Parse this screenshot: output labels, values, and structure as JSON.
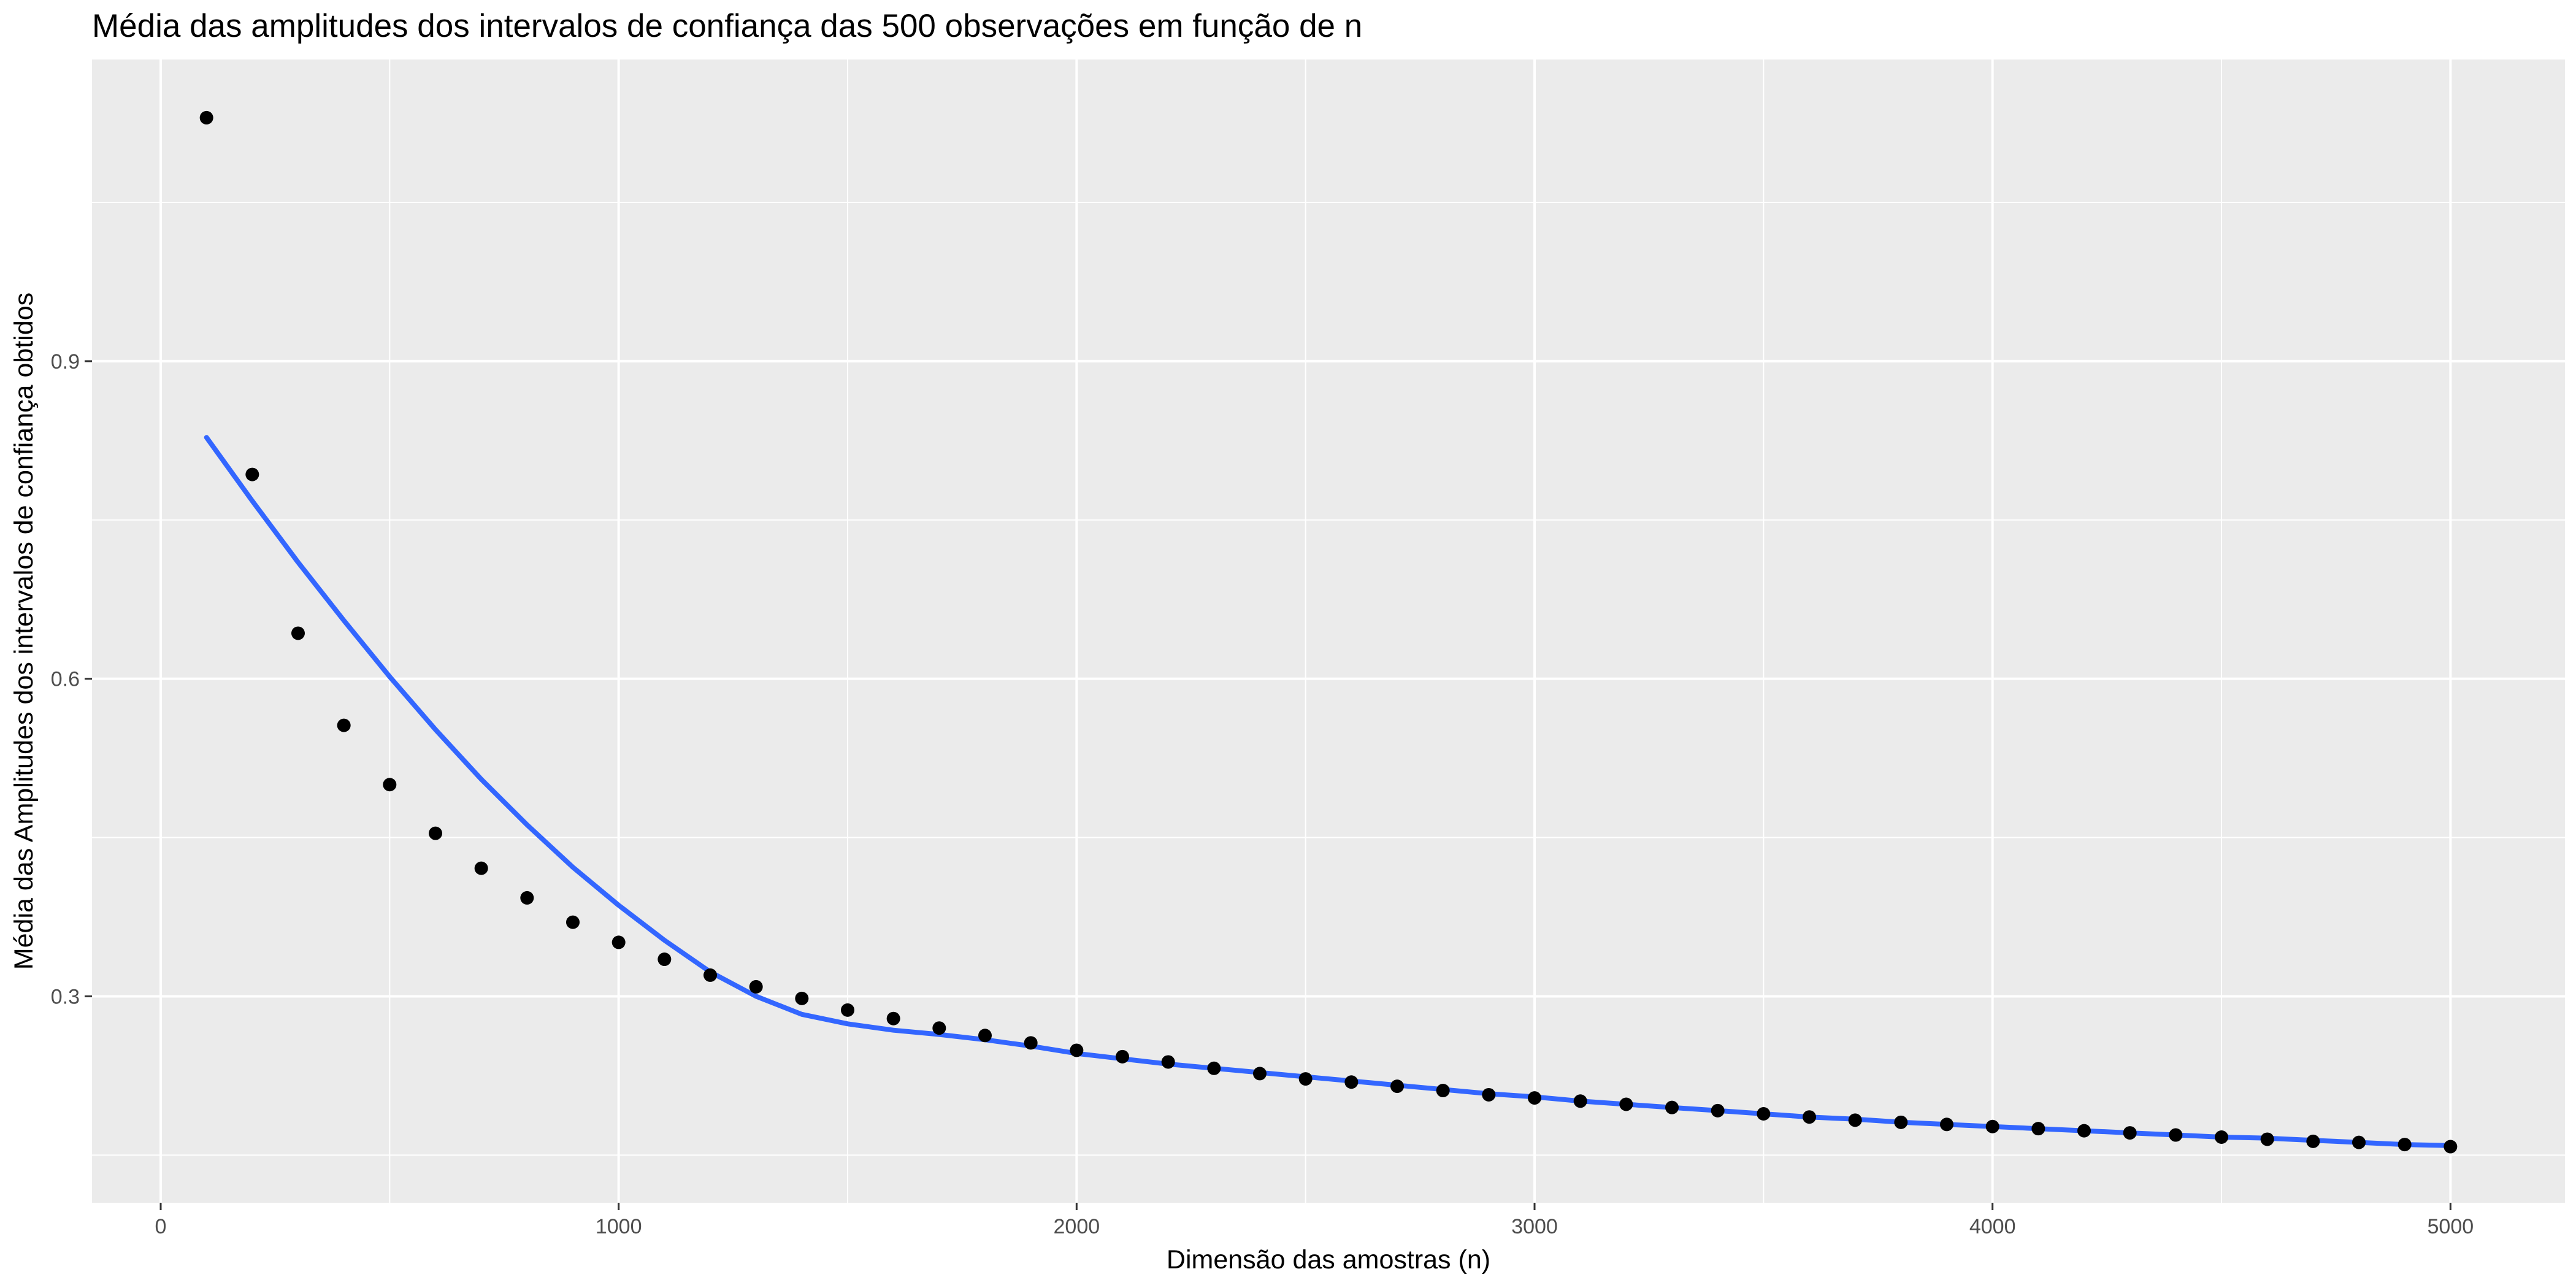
{
  "chart_data": {
    "type": "scatter",
    "title": "Média das amplitudes dos intervalos de confiança das 500 observações em função de n",
    "xlabel": "Dimensão das amostras (n)",
    "ylabel": "Média das Amplitudes dos intervalos de confiança obtidos",
    "xlim": [
      -150,
      5250
    ],
    "ylim": [
      0.105,
      1.185
    ],
    "x_ticks": [
      0,
      1000,
      2000,
      3000,
      4000,
      5000
    ],
    "x_tick_labels": [
      "0",
      "1000",
      "2000",
      "3000",
      "4000",
      "5000"
    ],
    "y_ticks": [
      0.3,
      0.6,
      0.9
    ],
    "y_tick_labels": [
      "0.3",
      "0.6",
      "0.9"
    ],
    "grid": true,
    "series": [
      {
        "kind": "points",
        "color": "#000000",
        "x": [
          100,
          200,
          300,
          400,
          500,
          600,
          700,
          800,
          900,
          1000,
          1100,
          1200,
          1300,
          1400,
          1500,
          1600,
          1700,
          1800,
          1900,
          2000,
          2100,
          2200,
          2300,
          2400,
          2500,
          2600,
          2700,
          2800,
          2900,
          3000,
          3100,
          3200,
          3300,
          3400,
          3500,
          3600,
          3700,
          3800,
          3900,
          4000,
          4100,
          4200,
          4300,
          4400,
          4500,
          4600,
          4700,
          4800,
          4900,
          5000
        ],
        "y": [
          1.13,
          0.793,
          0.643,
          0.556,
          0.5,
          0.454,
          0.421,
          0.393,
          0.37,
          0.351,
          0.335,
          0.32,
          0.309,
          0.298,
          0.287,
          0.279,
          0.27,
          0.263,
          0.256,
          0.249,
          0.243,
          0.238,
          0.232,
          0.227,
          0.222,
          0.219,
          0.215,
          0.211,
          0.207,
          0.204,
          0.201,
          0.198,
          0.195,
          0.192,
          0.189,
          0.186,
          0.183,
          0.181,
          0.179,
          0.177,
          0.175,
          0.173,
          0.171,
          0.169,
          0.167,
          0.165,
          0.163,
          0.162,
          0.16,
          0.158
        ]
      },
      {
        "kind": "smooth",
        "color": "#3366ff",
        "x": [
          100,
          200,
          300,
          400,
          500,
          600,
          700,
          800,
          900,
          1000,
          1100,
          1200,
          1300,
          1400,
          1500,
          1600,
          1700,
          1800,
          1900,
          2000,
          2100,
          2200,
          2300,
          2400,
          2500,
          2600,
          2700,
          2800,
          2900,
          3000,
          3100,
          3200,
          3300,
          3400,
          3500,
          3600,
          3700,
          3800,
          3900,
          4000,
          4100,
          4200,
          4300,
          4400,
          4500,
          4600,
          4700,
          4800,
          4900,
          5000
        ],
        "y": [
          0.828,
          0.768,
          0.71,
          0.655,
          0.602,
          0.552,
          0.505,
          0.462,
          0.422,
          0.386,
          0.353,
          0.323,
          0.3,
          0.283,
          0.274,
          0.268,
          0.264,
          0.259,
          0.253,
          0.246,
          0.241,
          0.236,
          0.232,
          0.228,
          0.224,
          0.22,
          0.216,
          0.212,
          0.208,
          0.205,
          0.201,
          0.198,
          0.195,
          0.192,
          0.189,
          0.186,
          0.184,
          0.181,
          0.179,
          0.177,
          0.175,
          0.173,
          0.171,
          0.169,
          0.167,
          0.166,
          0.164,
          0.162,
          0.16,
          0.159
        ]
      }
    ]
  }
}
